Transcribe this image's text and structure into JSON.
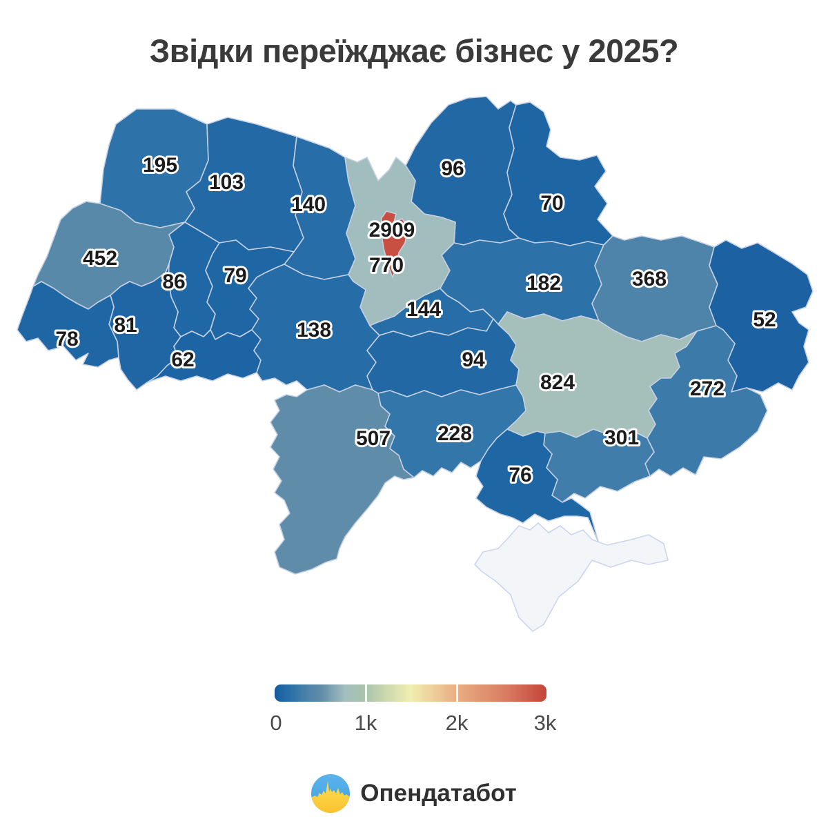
{
  "title": "Звідки переїжджає бізнес у 2025?",
  "map": {
    "regions": [
      {
        "id": "volyn",
        "value": 195
      },
      {
        "id": "rivne",
        "value": 103
      },
      {
        "id": "zhytomyr",
        "value": 140
      },
      {
        "id": "chernihiv",
        "value": 96
      },
      {
        "id": "sumy",
        "value": 70
      },
      {
        "id": "kyiv-oblast",
        "value": 770
      },
      {
        "id": "lviv",
        "value": 452
      },
      {
        "id": "ternopil",
        "value": 86
      },
      {
        "id": "khmelnytskyi",
        "value": 79
      },
      {
        "id": "ivano-frankivsk",
        "value": 81
      },
      {
        "id": "zakarpattia",
        "value": 78
      },
      {
        "id": "chernivtsi",
        "value": 62
      },
      {
        "id": "vinnytsia",
        "value": 138
      },
      {
        "id": "cherkasy",
        "value": 144
      },
      {
        "id": "poltava",
        "value": 182
      },
      {
        "id": "kharkiv",
        "value": 368
      },
      {
        "id": "luhansk",
        "value": 52
      },
      {
        "id": "kirovohrad",
        "value": 94
      },
      {
        "id": "dnipro",
        "value": 824
      },
      {
        "id": "donetsk",
        "value": 272
      },
      {
        "id": "odesa",
        "value": 507
      },
      {
        "id": "mykolaiv",
        "value": 228
      },
      {
        "id": "zaporizhzhia",
        "value": 301
      },
      {
        "id": "kherson",
        "value": 76
      },
      {
        "id": "kyiv-city",
        "value": 2909
      }
    ],
    "no_data_region": {
      "id": "crimea"
    }
  },
  "legend": {
    "min": 0,
    "max": 3000,
    "ticks": [
      "0",
      "1k",
      "2k",
      "3k"
    ],
    "gradient_stops": [
      [
        0.0,
        "#12589b"
      ],
      [
        0.02,
        "#1d64a4"
      ],
      [
        0.07,
        "#2f74a9"
      ],
      [
        0.12,
        "#4d83aa"
      ],
      [
        0.17,
        "#5f8ca9"
      ],
      [
        0.26,
        "#a4bfbf"
      ],
      [
        0.33,
        "#a9c3ab"
      ],
      [
        0.5,
        "#f1eeb2"
      ],
      [
        0.67,
        "#e9ad82"
      ],
      [
        0.85,
        "#d97c62"
      ],
      [
        1.0,
        "#c4453a"
      ]
    ]
  },
  "footer": {
    "brand": "Опендатабот"
  },
  "colors": {
    "background": "#ffffff",
    "region_border": "#c5d0e2",
    "no_data_fill": "#f4f5f8",
    "no_data_border": "#ccd5ef",
    "label_text": "#1b1b1b",
    "label_halo": "#ffffff",
    "title_text": "#3a3a3a",
    "legend_text": "#4a4a4a",
    "logo_blue": "#47a5e8",
    "logo_yellow": "#ffd448"
  },
  "chart_data": {
    "type": "choropleth",
    "title": "Звідки переїжджає бізнес у 2025?",
    "regions": [
      {
        "region": "volyn",
        "value": 195
      },
      {
        "region": "rivne",
        "value": 103
      },
      {
        "region": "zhytomyr",
        "value": 140
      },
      {
        "region": "chernihiv",
        "value": 96
      },
      {
        "region": "sumy",
        "value": 70
      },
      {
        "region": "kyiv-oblast",
        "value": 770
      },
      {
        "region": "kyiv-city",
        "value": 2909
      },
      {
        "region": "lviv",
        "value": 452
      },
      {
        "region": "ternopil",
        "value": 86
      },
      {
        "region": "khmelnytskyi",
        "value": 79
      },
      {
        "region": "ivano-frankivsk",
        "value": 81
      },
      {
        "region": "zakarpattia",
        "value": 78
      },
      {
        "region": "chernivtsi",
        "value": 62
      },
      {
        "region": "vinnytsia",
        "value": 138
      },
      {
        "region": "cherkasy",
        "value": 144
      },
      {
        "region": "poltava",
        "value": 182
      },
      {
        "region": "kharkiv",
        "value": 368
      },
      {
        "region": "luhansk",
        "value": 52
      },
      {
        "region": "kirovohrad",
        "value": 94
      },
      {
        "region": "dnipro",
        "value": 824
      },
      {
        "region": "donetsk",
        "value": 272
      },
      {
        "region": "odesa",
        "value": 507
      },
      {
        "region": "mykolaiv",
        "value": 228
      },
      {
        "region": "zaporizhzhia",
        "value": 301
      },
      {
        "region": "kherson",
        "value": 76
      }
    ],
    "no_data_regions": [
      "crimea"
    ],
    "colorbar": {
      "min": 0,
      "max": 3000,
      "tick_labels": [
        "0",
        "1k",
        "2k",
        "3k"
      ],
      "palette": "blue → gray-green → pale-yellow → orange → red"
    },
    "legend_position": "bottom-center"
  }
}
